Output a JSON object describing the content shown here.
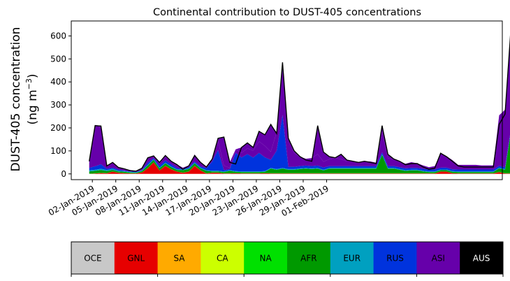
{
  "chart_data": {
    "type": "area",
    "stacked": true,
    "title": "Continental contribution to DUST-405 concentrations",
    "ylabel_line1": "DUST-405 concentration",
    "ylabel_line2_prefix": "(ng m",
    "ylabel_line2_sup": "−3",
    "ylabel_line2_suffix": ")",
    "xlabel": "",
    "x_start": "2018-12-31",
    "x_interval_days": 0.75,
    "ylim": [
      -25,
      665
    ],
    "yticks": [
      0,
      100,
      200,
      300,
      400,
      500,
      600
    ],
    "xtick_labels": [
      "02-Jan-2019",
      "05-Jan-2019",
      "08-Jan-2019",
      "11-Jan-2019",
      "14-Jan-2019",
      "17-Jan-2019",
      "20-Jan-2019",
      "23-Jan-2019",
      "26-Jan-2019",
      "29-Jan-2019",
      "01-Feb-2019"
    ],
    "series": [
      {
        "name": "OCE",
        "color": "#c8c8c8",
        "values": [
          0,
          0,
          0,
          0,
          0,
          0,
          0,
          0,
          0,
          0,
          0,
          0,
          0,
          0,
          0,
          0,
          0,
          0,
          0,
          0,
          0,
          0,
          0,
          0,
          0,
          0,
          0,
          0,
          0,
          0,
          0,
          0,
          0,
          0,
          0,
          0,
          0,
          0,
          0,
          0,
          0,
          0,
          0,
          0,
          0,
          0,
          0,
          0,
          0,
          0,
          0,
          0,
          0,
          0,
          0,
          0,
          0,
          0,
          0,
          0,
          0,
          0,
          0,
          0,
          0,
          0,
          0,
          0,
          0,
          0,
          0,
          0,
          0
        ]
      },
      {
        "name": "GNL",
        "color": "#e60000",
        "values": [
          0,
          2,
          4,
          3,
          10,
          5,
          3,
          2,
          2,
          6,
          25,
          50,
          15,
          35,
          20,
          10,
          5,
          10,
          35,
          15,
          2,
          5,
          5,
          2,
          2,
          3,
          2,
          2,
          2,
          2,
          3,
          2,
          2,
          2,
          2,
          2,
          2,
          2,
          2,
          2,
          2,
          2,
          2,
          2,
          2,
          2,
          2,
          2,
          2,
          2,
          2,
          2,
          2,
          2,
          2,
          2,
          2,
          2,
          2,
          2,
          10,
          10,
          3,
          2,
          2,
          2,
          2,
          2,
          2,
          2,
          8,
          2,
          2
        ]
      },
      {
        "name": "SA",
        "color": "#ffaa00",
        "values": [
          0,
          0,
          0,
          0,
          0,
          0,
          0,
          0,
          0,
          0,
          0,
          0,
          0,
          0,
          0,
          0,
          0,
          0,
          0,
          0,
          0,
          0,
          0,
          0,
          0,
          0,
          0,
          0,
          0,
          0,
          0,
          0,
          0,
          0,
          0,
          0,
          0,
          0,
          0,
          0,
          0,
          0,
          0,
          0,
          0,
          0,
          0,
          0,
          0,
          0,
          0,
          0,
          0,
          0,
          0,
          0,
          0,
          0,
          0,
          0,
          0,
          0,
          0,
          0,
          0,
          0,
          0,
          0,
          0,
          0,
          0,
          0,
          0
        ]
      },
      {
        "name": "CA",
        "color": "#ccff00",
        "values": [
          0,
          0,
          0,
          0,
          0,
          0,
          0,
          0,
          0,
          0,
          0,
          0,
          0,
          0,
          0,
          0,
          0,
          0,
          0,
          0,
          0,
          0,
          0,
          0,
          0,
          0,
          0,
          0,
          0,
          0,
          0,
          0,
          0,
          0,
          0,
          0,
          0,
          0,
          0,
          0,
          0,
          0,
          0,
          0,
          0,
          0,
          0,
          0,
          0,
          0,
          0,
          0,
          0,
          0,
          0,
          0,
          0,
          0,
          0,
          0,
          0,
          0,
          0,
          0,
          0,
          0,
          0,
          0,
          0,
          0,
          0,
          0,
          0
        ]
      },
      {
        "name": "NA",
        "color": "#00e000",
        "values": [
          1,
          1,
          1,
          1,
          1,
          1,
          1,
          1,
          1,
          1,
          1,
          1,
          1,
          1,
          1,
          1,
          1,
          1,
          1,
          1,
          1,
          1,
          1,
          1,
          1,
          1,
          1,
          1,
          1,
          1,
          1,
          1,
          1,
          1,
          1,
          1,
          1,
          1,
          1,
          1,
          1,
          1,
          1,
          1,
          1,
          1,
          1,
          1,
          1,
          1,
          1,
          1,
          1,
          1,
          1,
          1,
          1,
          1,
          1,
          1,
          1,
          1,
          1,
          1,
          1,
          1,
          1,
          1,
          1,
          1,
          1,
          1,
          1
        ]
      },
      {
        "name": "AFR",
        "color": "#009900",
        "values": [
          10,
          10,
          12,
          8,
          6,
          5,
          5,
          3,
          2,
          5,
          10,
          10,
          8,
          10,
          8,
          6,
          10,
          10,
          10,
          8,
          10,
          5,
          5,
          5,
          10,
          5,
          5,
          5,
          5,
          5,
          5,
          20,
          15,
          20,
          15,
          15,
          18,
          20,
          18,
          20,
          12,
          20,
          20,
          20,
          20,
          20,
          20,
          20,
          20,
          20,
          80,
          20,
          20,
          15,
          10,
          12,
          12,
          8,
          5,
          5,
          5,
          5,
          5,
          5,
          5,
          5,
          5,
          5,
          5,
          5,
          15,
          15,
          180
        ]
      },
      {
        "name": "EUR",
        "color": "#00a0c0",
        "values": [
          5,
          5,
          5,
          5,
          5,
          3,
          3,
          3,
          2,
          3,
          3,
          3,
          3,
          3,
          3,
          3,
          3,
          3,
          3,
          3,
          3,
          3,
          3,
          3,
          3,
          3,
          3,
          3,
          3,
          3,
          3,
          3,
          3,
          3,
          3,
          3,
          3,
          3,
          3,
          3,
          3,
          3,
          3,
          3,
          3,
          3,
          3,
          3,
          3,
          3,
          3,
          3,
          3,
          3,
          3,
          3,
          3,
          3,
          3,
          3,
          3,
          3,
          3,
          3,
          3,
          3,
          3,
          3,
          3,
          3,
          3,
          3,
          3
        ]
      },
      {
        "name": "RUS",
        "color": "#0033dd",
        "values": [
          10,
          15,
          20,
          5,
          5,
          5,
          2,
          2,
          2,
          2,
          10,
          5,
          8,
          10,
          10,
          5,
          2,
          5,
          5,
          5,
          10,
          40,
          90,
          5,
          5,
          80,
          60,
          75,
          60,
          80,
          60,
          35,
          80,
          230,
          10,
          10,
          10,
          10,
          10,
          10,
          10,
          8,
          8,
          8,
          8,
          8,
          8,
          8,
          8,
          8,
          8,
          8,
          8,
          8,
          8,
          8,
          8,
          8,
          8,
          8,
          8,
          8,
          8,
          8,
          8,
          8,
          8,
          8,
          8,
          8,
          8,
          8,
          8
        ]
      },
      {
        "name": "ASI",
        "color": "#6600aa",
        "values": [
          35,
          180,
          160,
          15,
          20,
          10,
          8,
          6,
          4,
          6,
          20,
          6,
          10,
          16,
          12,
          8,
          6,
          8,
          30,
          20,
          6,
          10,
          40,
          20,
          5,
          15,
          20,
          25,
          30,
          50,
          50,
          35,
          80,
          230,
          125,
          60,
          40,
          30,
          35,
          50,
          25,
          30,
          35,
          30,
          20,
          20,
          15,
          20,
          20,
          15,
          90,
          35,
          30,
          25,
          20,
          25,
          20,
          15,
          10,
          15,
          60,
          50,
          40,
          20,
          20,
          20,
          20,
          18,
          18,
          18,
          220,
          250,
          420
        ]
      },
      {
        "name": "AUS",
        "color": "#000000",
        "values": [
          0,
          0,
          0,
          0,
          0,
          0,
          0,
          0,
          0,
          0,
          0,
          0,
          0,
          0,
          0,
          0,
          0,
          0,
          0,
          0,
          0,
          0,
          0,
          0,
          0,
          0,
          0,
          0,
          0,
          0,
          0,
          0,
          0,
          0,
          0,
          0,
          0,
          0,
          0,
          0,
          0,
          0,
          0,
          0,
          0,
          0,
          0,
          0,
          0,
          0,
          0,
          0,
          0,
          0,
          0,
          0,
          0,
          0,
          0,
          0,
          0,
          0,
          0,
          0,
          0,
          0,
          0,
          0,
          0,
          0,
          0,
          0,
          0
        ]
      }
    ],
    "total": [
      55,
      210,
      208,
      35,
      50,
      28,
      22,
      14,
      12,
      25,
      70,
      78,
      50,
      80,
      55,
      40,
      20,
      35,
      80,
      50,
      30,
      65,
      155,
      160,
      50,
      43,
      115,
      135,
      115,
      185,
      170,
      215,
      175,
      485,
      155,
      100,
      75,
      60,
      55,
      210,
      95,
      75,
      70,
      85,
      60,
      55,
      50,
      55,
      50,
      45,
      210,
      85,
      65,
      55,
      40,
      45,
      45,
      30,
      20,
      25,
      90,
      75,
      55,
      35,
      30,
      30,
      30,
      30,
      30,
      30,
      215,
      260,
      630
    ],
    "legend": {
      "placement": "bottom",
      "items": [
        {
          "label": "OCE",
          "color": "#c8c8c8",
          "text_color": "#000000"
        },
        {
          "label": "GNL",
          "color": "#e60000",
          "text_color": "#000000"
        },
        {
          "label": "SA",
          "color": "#ffaa00",
          "text_color": "#000000"
        },
        {
          "label": "CA",
          "color": "#ccff00",
          "text_color": "#000000"
        },
        {
          "label": "NA",
          "color": "#00e000",
          "text_color": "#000000"
        },
        {
          "label": "AFR",
          "color": "#009900",
          "text_color": "#000000"
        },
        {
          "label": "EUR",
          "color": "#00a0c0",
          "text_color": "#000000"
        },
        {
          "label": "RUS",
          "color": "#0033dd",
          "text_color": "#000000"
        },
        {
          "label": "ASI",
          "color": "#6600aa",
          "text_color": "#000000"
        },
        {
          "label": "AUS",
          "color": "#000000",
          "text_color": "#ffffff"
        }
      ]
    }
  }
}
